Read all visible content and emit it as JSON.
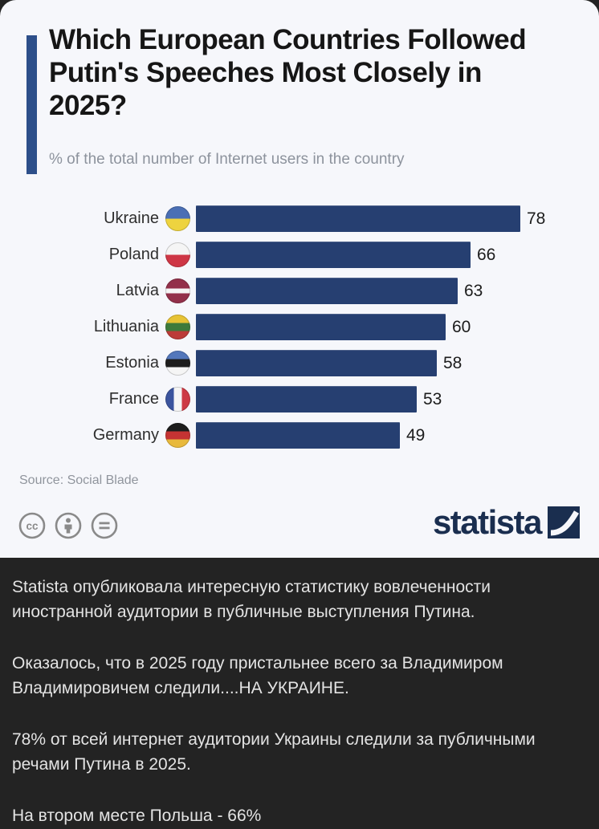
{
  "chart_data": {
    "type": "bar",
    "orientation": "horizontal",
    "title": "Which European Countries Followed Putin's Speeches Most Closely in 2025?",
    "subtitle": "% of the total number of Internet users in the country",
    "source": "Source: Social Blade",
    "categories": [
      "Ukraine",
      "Poland",
      "Latvia",
      "Lithuania",
      "Estonia",
      "France",
      "Germany"
    ],
    "values": [
      78,
      66,
      63,
      60,
      58,
      53,
      49
    ],
    "xlim": [
      0,
      78
    ],
    "grid": false,
    "legend": "none",
    "bar_color": "#263f71",
    "flags": [
      {
        "country": "Ukraine",
        "direction": "180deg",
        "stripes": [
          "#4a6fb5",
          "#eed33f"
        ],
        "weights": [
          1,
          1
        ]
      },
      {
        "country": "Poland",
        "direction": "180deg",
        "stripes": [
          "#f5f5f5",
          "#ce3645"
        ],
        "weights": [
          1,
          1
        ]
      },
      {
        "country": "Latvia",
        "direction": "180deg",
        "stripes": [
          "#93304a",
          "#f5f5f5",
          "#93304a"
        ],
        "weights": [
          2,
          1,
          2
        ]
      },
      {
        "country": "Lithuania",
        "direction": "180deg",
        "stripes": [
          "#e7c335",
          "#3d7a3b",
          "#bc3b38"
        ],
        "weights": [
          1,
          1,
          1
        ]
      },
      {
        "country": "Estonia",
        "direction": "180deg",
        "stripes": [
          "#5377bb",
          "#1d1d1d",
          "#f5f5f5"
        ],
        "weights": [
          1,
          1,
          1
        ]
      },
      {
        "country": "France",
        "direction": "90deg",
        "stripes": [
          "#3b549e",
          "#f5f5f5",
          "#cd3a45"
        ],
        "weights": [
          1,
          1,
          1
        ]
      },
      {
        "country": "Germany",
        "direction": "180deg",
        "stripes": [
          "#1d1d1d",
          "#c53333",
          "#e8b93c"
        ],
        "weights": [
          1,
          1,
          1
        ]
      }
    ]
  },
  "colors": {
    "card_background": "#f6f7fb",
    "accent": "#2d4f8a",
    "bar": "#263f71",
    "dark_background": "#232323",
    "brand_navy": "#1a2e4f"
  },
  "branding": {
    "logo_text": "statista",
    "license_icons": [
      "cc-icon",
      "attribution-icon",
      "no-derivatives-icon"
    ]
  },
  "caption": {
    "paragraphs": [
      "Statista опубликовала интересную статистику вовлеченности иностранной аудитории в публичные выступления Путина.",
      "Оказалось, что в 2025 году пристальнее всего за Владимиром Владимировичем следили....НА УКРАИНЕ.",
      "78% от всей интернет аудитории Украины следили за публичными речами Путина в 2025.",
      "На втором месте Польша - 66%"
    ]
  }
}
